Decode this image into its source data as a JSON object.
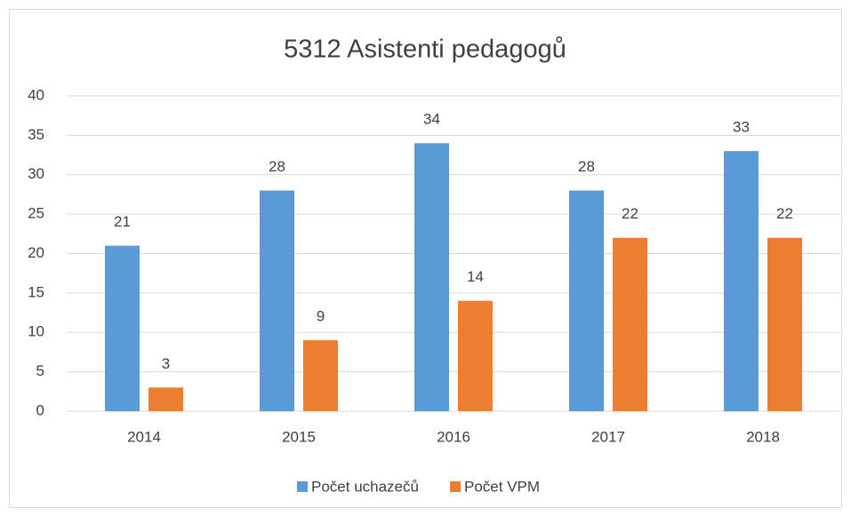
{
  "chart_data": {
    "type": "bar",
    "title": "5312 Asistenti pedagogů",
    "categories": [
      "2014",
      "2015",
      "2016",
      "2017",
      "2018"
    ],
    "series": [
      {
        "name": "Počet uchazečů",
        "color": "#5b9bd5",
        "values": [
          21,
          28,
          34,
          28,
          33
        ]
      },
      {
        "name": "Počet VPM",
        "color": "#ed7d31",
        "values": [
          3,
          9,
          14,
          22,
          22
        ]
      }
    ],
    "ylim": [
      0,
      40
    ],
    "yticks": [
      0,
      5,
      10,
      15,
      20,
      25,
      30,
      35,
      40
    ],
    "grid": true,
    "legend": "bottom",
    "data_labels": true
  }
}
